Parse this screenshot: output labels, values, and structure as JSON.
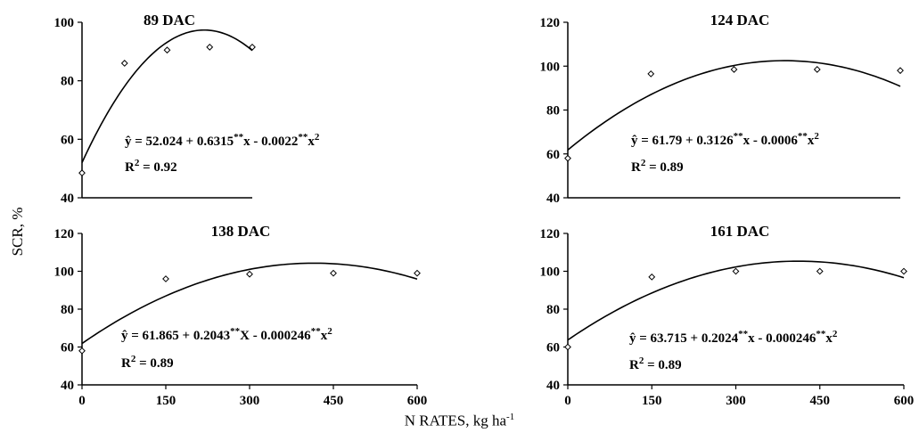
{
  "ylabel": "SCR, %",
  "xlabel": "N RATES, kg ha",
  "xlabel_sup": "-1",
  "chart_data": [
    {
      "type": "scatter",
      "title": "89 DAC",
      "x": [
        0,
        50,
        100,
        150,
        200
      ],
      "y": [
        48.5,
        86,
        90.5,
        91.5,
        91.5
      ],
      "fit": {
        "a": 52.024,
        "b": 0.6315,
        "c": -0.0022
      },
      "equation": "ŷ = 52.024 + 0.6315**x - 0.0022**x2",
      "r2": "R2 = 0.92",
      "xlim": [
        0,
        200
      ],
      "ylim": [
        40,
        100
      ],
      "yticks": [
        40,
        60,
        80,
        100
      ],
      "xticks": []
    },
    {
      "type": "scatter",
      "title": "124 DAC",
      "x": [
        0,
        100,
        200,
        300,
        400
      ],
      "y": [
        58,
        96.5,
        98.5,
        98.5,
        98
      ],
      "fit": {
        "a": 61.79,
        "b": 0.3126,
        "c": -0.0006
      },
      "equation": "ŷ = 61.79 + 0.3126**x - 0.0006**x2",
      "r2": "R2 = 0.89",
      "xlim": [
        0,
        400
      ],
      "ylim": [
        40,
        120
      ],
      "yticks": [
        40,
        60,
        80,
        100,
        120
      ],
      "xticks": []
    },
    {
      "type": "scatter",
      "title": "138 DAC",
      "x": [
        0,
        150,
        300,
        450,
        600
      ],
      "y": [
        58,
        96,
        98.5,
        99,
        99
      ],
      "fit": {
        "a": 61.865,
        "b": 0.2043,
        "c": -0.000246
      },
      "equation": "ŷ = 61.865 + 0.2043**X - 0.000246**x2",
      "r2": "R2 = 0.89",
      "xlim": [
        0,
        600
      ],
      "ylim": [
        40,
        120
      ],
      "yticks": [
        40,
        60,
        80,
        100,
        120
      ],
      "xticks": [
        0,
        150,
        300,
        450,
        600
      ]
    },
    {
      "type": "scatter",
      "title": "161 DAC",
      "x": [
        0,
        150,
        300,
        450,
        600
      ],
      "y": [
        60,
        97,
        100,
        100,
        100
      ],
      "fit": {
        "a": 63.715,
        "b": 0.2024,
        "c": -0.000246
      },
      "equation": "ŷ = 63.715 + 0.2024**x - 0.000246**x2",
      "r2": "R2 = 0.89",
      "xlim": [
        0,
        600
      ],
      "ylim": [
        40,
        120
      ],
      "yticks": [
        40,
        60,
        80,
        100,
        120
      ],
      "xticks": [
        0,
        150,
        300,
        450,
        600
      ]
    }
  ]
}
